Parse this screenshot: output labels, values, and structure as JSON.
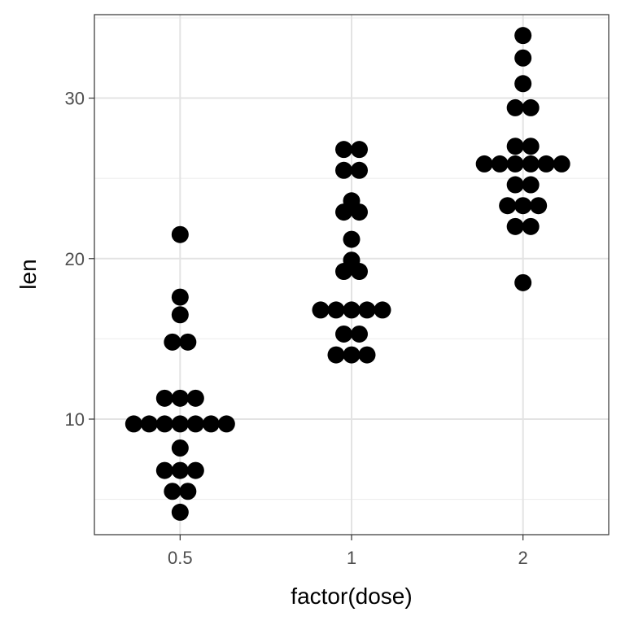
{
  "chart_data": {
    "type": "dotplot",
    "xlabel": "factor(dose)",
    "ylabel": "len",
    "categories": [
      "0.5",
      "1",
      "2"
    ],
    "ylim": [
      2.8,
      35.2
    ],
    "y_ticks": [
      10,
      20,
      30
    ],
    "y_minor_ticks": [
      5,
      15,
      25,
      35
    ],
    "grid": true,
    "point_color": "#000000",
    "groups": [
      {
        "category": "0.5",
        "values": [
          4.2,
          5.5,
          5.5,
          6.8,
          6.8,
          6.8,
          8.2,
          9.7,
          9.7,
          9.7,
          9.7,
          9.7,
          9.7,
          9.7,
          11.3,
          11.3,
          11.3,
          14.8,
          14.8,
          16.5,
          17.6,
          21.5
        ]
      },
      {
        "category": "1",
        "values": [
          14.0,
          14.0,
          14.0,
          15.3,
          15.3,
          16.8,
          16.8,
          16.8,
          16.8,
          16.8,
          19.2,
          19.2,
          19.9,
          21.2,
          22.9,
          22.9,
          23.6,
          25.5,
          25.5,
          26.8,
          26.8
        ]
      },
      {
        "category": "2",
        "values": [
          18.5,
          22.0,
          22.0,
          23.3,
          23.3,
          23.3,
          24.6,
          24.6,
          25.9,
          25.9,
          25.9,
          25.9,
          25.9,
          25.9,
          27.0,
          27.0,
          29.4,
          29.4,
          30.9,
          32.5,
          33.9
        ]
      }
    ]
  }
}
